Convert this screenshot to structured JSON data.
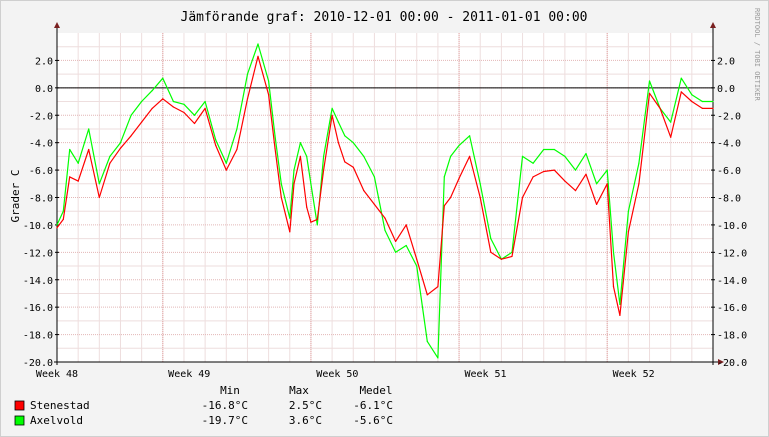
{
  "title": "Jämförande graf: 2010-12-01 00:00 - 2011-01-01 00:00",
  "watermark": "RRDTOOL / TOBI OETIKER",
  "chart_data": {
    "type": "line",
    "title": "Jämförande graf: 2010-12-01 00:00 - 2011-01-01 00:00",
    "ylabel": "Grader C",
    "xlabel": "",
    "ylim": [
      -20,
      4
    ],
    "grid": true,
    "y_ticks": [
      "2.0",
      "0.0",
      "-2.0",
      "-4.0",
      "-6.0",
      "-8.0",
      "-10.0",
      "-12.0",
      "-14.0",
      "-16.0",
      "-18.0",
      "-20.0"
    ],
    "y_tick_values": [
      2,
      0,
      -2,
      -4,
      -6,
      -8,
      -10,
      -12,
      -14,
      -16,
      -18,
      -20
    ],
    "x_range_days": [
      0,
      31
    ],
    "x_ticks": [
      {
        "label": "Week 48",
        "day": 0
      },
      {
        "label": "Week 49",
        "day": 6.25
      },
      {
        "label": "Week 50",
        "day": 13.25
      },
      {
        "label": "Week 51",
        "day": 20.25
      },
      {
        "label": "Week 52",
        "day": 27.25
      }
    ],
    "x_major_days": [
      5,
      12,
      19,
      26
    ],
    "series": [
      {
        "name": "Stenestad",
        "color": "#ff0000",
        "x": [
          0,
          0.3,
          0.6,
          1,
          1.5,
          2,
          2.5,
          3,
          3.5,
          4,
          4.5,
          5,
          5.5,
          6,
          6.5,
          7,
          7.5,
          8,
          8.5,
          9,
          9.5,
          10,
          10.3,
          10.6,
          11,
          11.2,
          11.5,
          11.8,
          12,
          12.3,
          12.6,
          13,
          13.3,
          13.6,
          14,
          14.5,
          15,
          15.5,
          16,
          16.5,
          17,
          17.5,
          18,
          18.3,
          18.6,
          19,
          19.5,
          20,
          20.5,
          21,
          21.5,
          22,
          22.5,
          23,
          23.5,
          24,
          24.5,
          25,
          25.5,
          26,
          26.3,
          26.6,
          27,
          27.5,
          28,
          28.5,
          29,
          29.5,
          30,
          30.5,
          31
        ],
        "values": [
          -10.2,
          -9.6,
          -6.5,
          -6.8,
          -4.5,
          -8.0,
          -5.5,
          -4.4,
          -3.5,
          -2.5,
          -1.5,
          -0.8,
          -1.4,
          -1.8,
          -2.6,
          -1.5,
          -4.2,
          -6.0,
          -4.5,
          -0.8,
          2.3,
          -0.5,
          -4.4,
          -8.0,
          -10.5,
          -7.0,
          -5.0,
          -8.7,
          -9.8,
          -9.6,
          -6.0,
          -2.0,
          -4.0,
          -5.4,
          -5.8,
          -7.5,
          -8.5,
          -9.5,
          -11.2,
          -10.0,
          -12.5,
          -15.1,
          -14.5,
          -8.6,
          -8.0,
          -6.6,
          -5.0,
          -8.0,
          -12.0,
          -12.5,
          -12.3,
          -8.0,
          -6.5,
          -6.1,
          -6.0,
          -6.8,
          -7.5,
          -6.3,
          -8.5,
          -7.0,
          -14.5,
          -16.6,
          -10.5,
          -7.0,
          -0.4,
          -1.5,
          -3.6,
          -0.3,
          -1.0,
          -1.5,
          -1.5
        ]
      },
      {
        "name": "Axelvold",
        "color": "#00ff00",
        "x": [
          0,
          0.3,
          0.6,
          1,
          1.5,
          2,
          2.5,
          3,
          3.5,
          4,
          4.5,
          5,
          5.5,
          6,
          6.5,
          7,
          7.5,
          8,
          8.5,
          9,
          9.5,
          10,
          10.3,
          10.6,
          11,
          11.2,
          11.5,
          11.8,
          12,
          12.3,
          12.6,
          13,
          13.3,
          13.6,
          14,
          14.5,
          15,
          15.5,
          16,
          16.5,
          17,
          17.5,
          18,
          18.3,
          18.6,
          19,
          19.5,
          20,
          20.5,
          21,
          21.5,
          22,
          22.5,
          23,
          23.5,
          24,
          24.5,
          25,
          25.5,
          26,
          26.3,
          26.6,
          27,
          27.5,
          28,
          28.5,
          29,
          29.5,
          30,
          30.5,
          31
        ],
        "values": [
          -10.0,
          -9.0,
          -4.5,
          -5.5,
          -3.0,
          -7.0,
          -5.0,
          -4.0,
          -2.0,
          -1.0,
          -0.2,
          0.7,
          -1.0,
          -1.2,
          -2.0,
          -1.0,
          -3.8,
          -5.5,
          -3.0,
          1.0,
          3.2,
          0.5,
          -3.5,
          -7.0,
          -9.5,
          -6.0,
          -4.0,
          -5.0,
          -7.0,
          -10.0,
          -5.0,
          -1.5,
          -2.5,
          -3.5,
          -4.0,
          -5.0,
          -6.5,
          -10.4,
          -12.0,
          -11.5,
          -13.0,
          -18.5,
          -19.7,
          -6.5,
          -5.0,
          -4.2,
          -3.5,
          -7.0,
          -11.0,
          -12.5,
          -12.0,
          -5.0,
          -5.5,
          -4.5,
          -4.5,
          -5.0,
          -6.0,
          -4.8,
          -7.0,
          -6.0,
          -12.0,
          -15.8,
          -9.0,
          -5.5,
          0.5,
          -1.5,
          -2.5,
          0.7,
          -0.5,
          -1.0,
          -1.0
        ]
      }
    ],
    "legend": {
      "placement": "bottom",
      "headers": [
        "Min",
        "Max",
        "Medel"
      ],
      "rows": [
        {
          "name": "Stenestad",
          "color": "#ff0000",
          "min": "-16.8°C",
          "max": "2.5°C",
          "medel": "-6.1°C"
        },
        {
          "name": "Axelvold",
          "color": "#00ff00",
          "min": "-19.7°C",
          "max": "3.6°C",
          "medel": "-5.6°C"
        }
      ]
    }
  }
}
